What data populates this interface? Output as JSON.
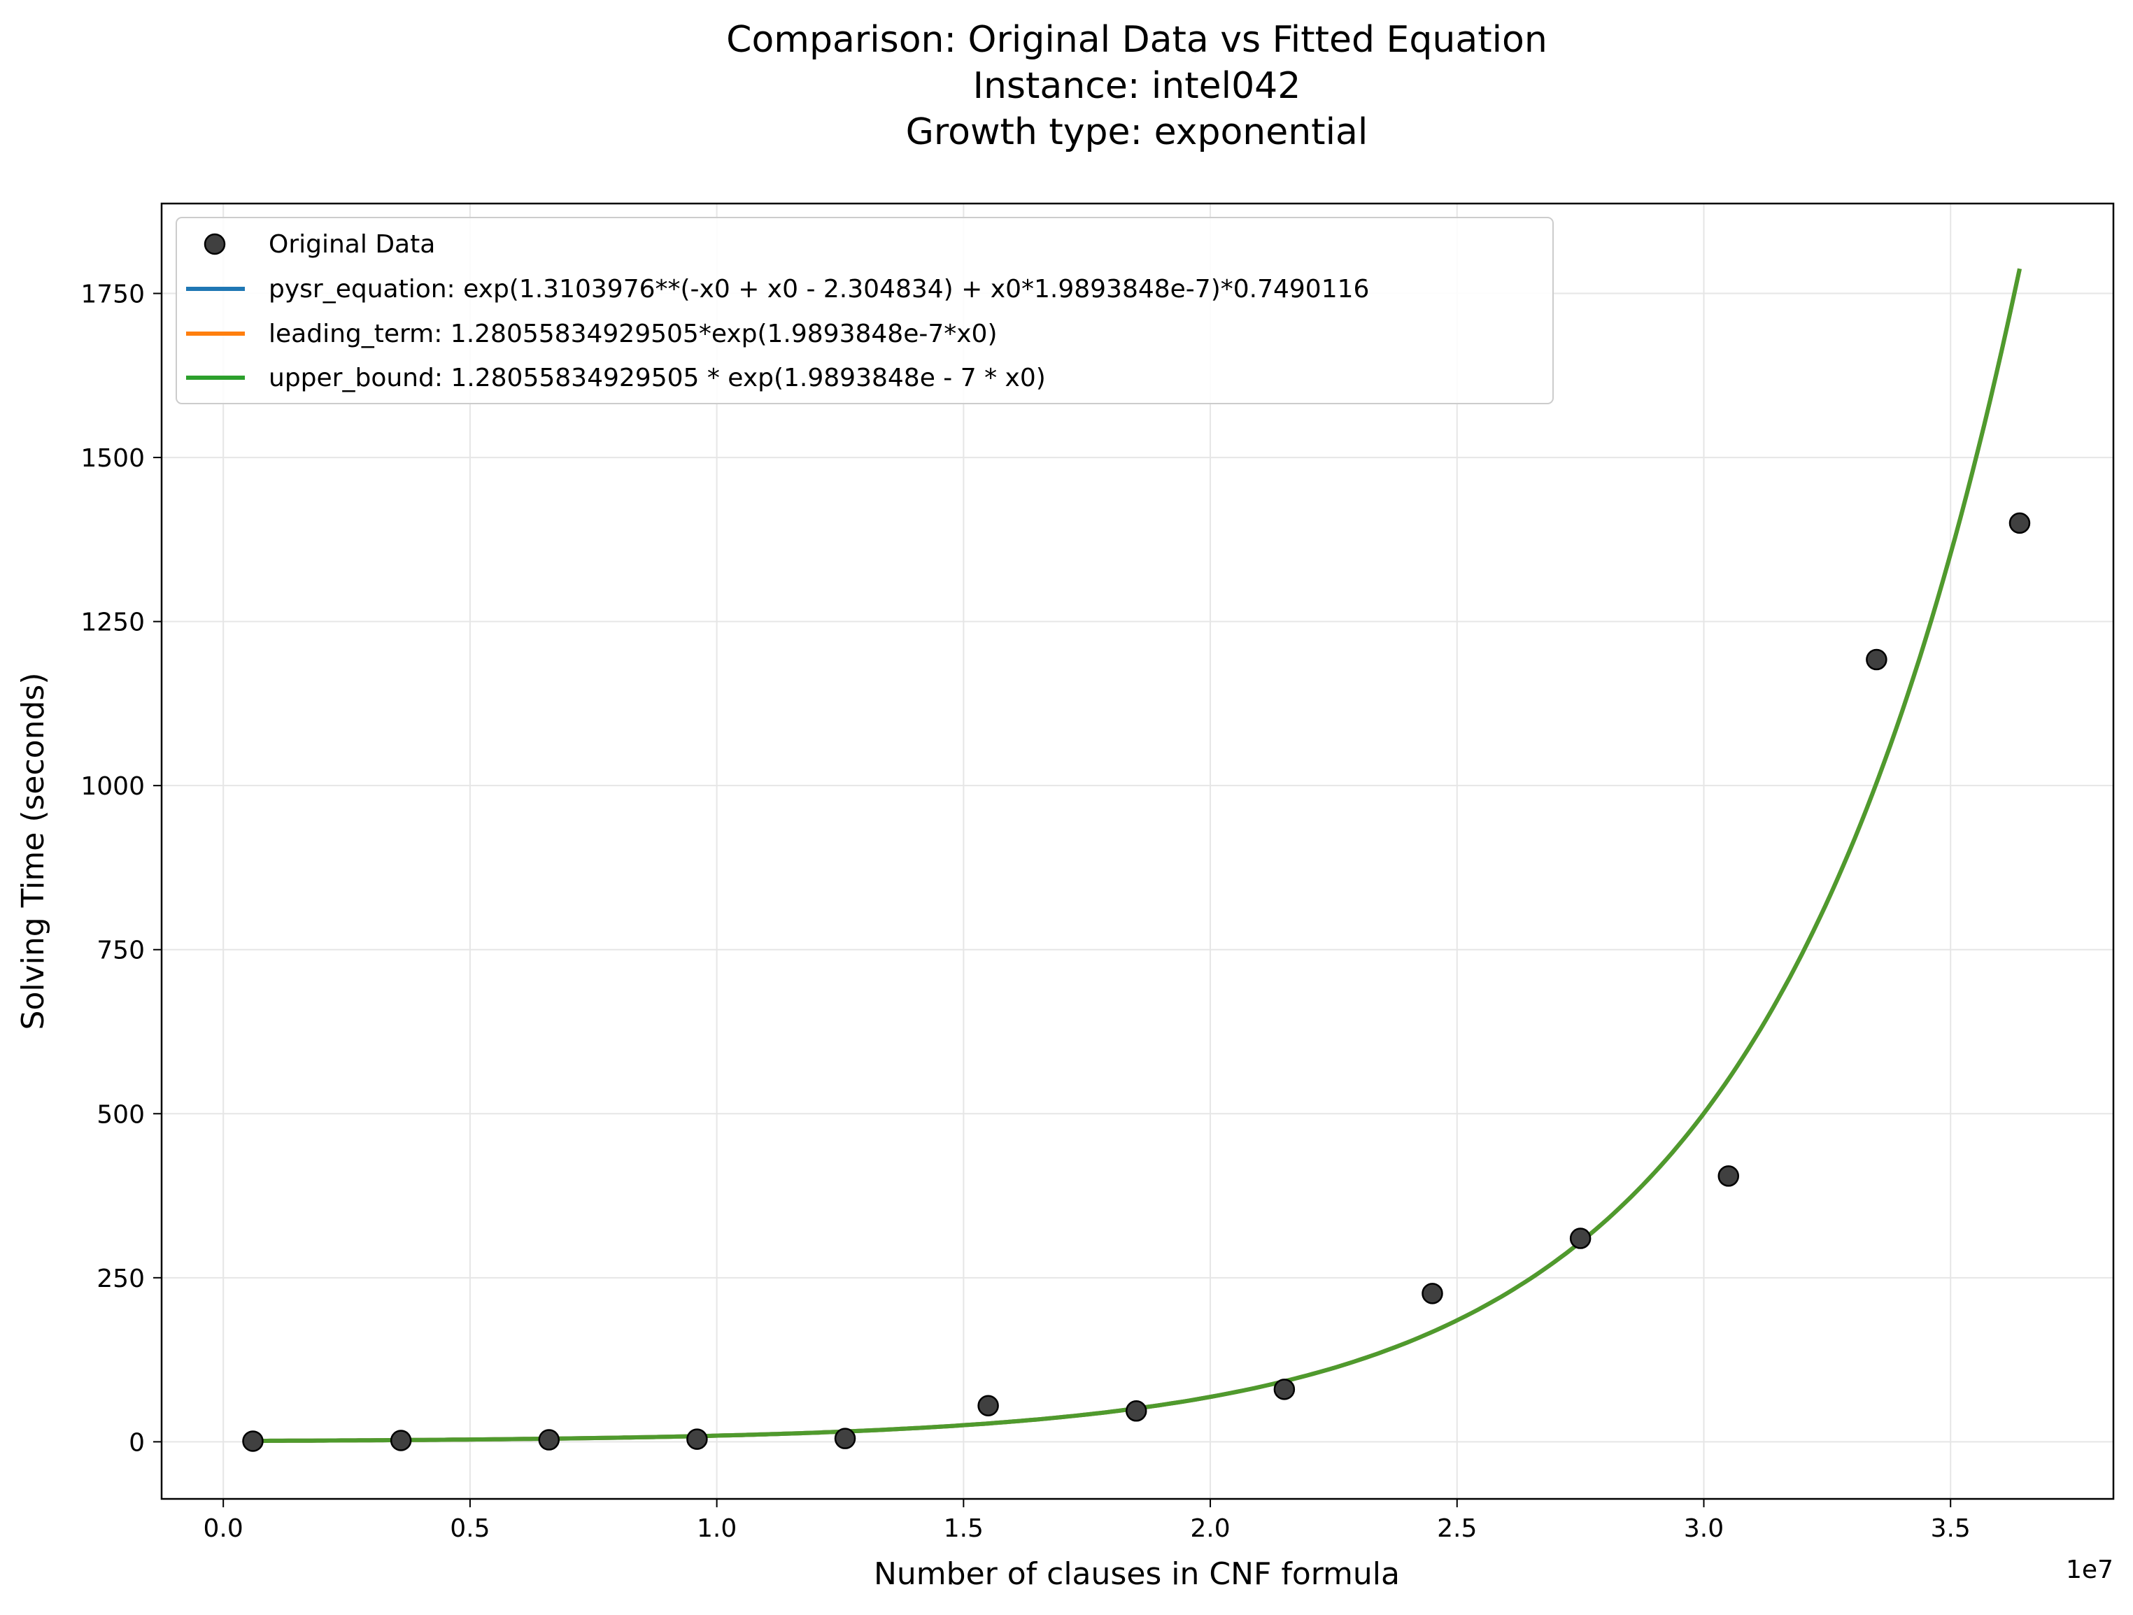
{
  "chart_data": {
    "type": "scatter",
    "title_lines": [
      "Comparison: Original Data vs Fitted Equation",
      "Instance: intel042",
      "Growth type: exponential"
    ],
    "xlabel": "Number of clauses in CNF formula",
    "ylabel": "Solving Time (seconds)",
    "x_offset_label": "1e7",
    "xlim": [
      -1250000,
      38300000
    ],
    "ylim": [
      -87,
      1887
    ],
    "x_ticks": [
      0,
      5000000,
      10000000,
      15000000,
      20000000,
      25000000,
      30000000,
      35000000
    ],
    "x_tick_labels": [
      "0.0",
      "0.5",
      "1.0",
      "1.5",
      "2.0",
      "2.5",
      "3.0",
      "3.5"
    ],
    "y_ticks": [
      0,
      250,
      500,
      750,
      1000,
      1250,
      1500,
      1750
    ],
    "y_tick_labels": [
      "0",
      "250",
      "500",
      "750",
      "1000",
      "1250",
      "1500",
      "1750"
    ],
    "grid": true,
    "legend_position": "upper-left",
    "scatter": {
      "name": "Original Data",
      "color": "#404040",
      "points": [
        {
          "x": 600000,
          "y": 1
        },
        {
          "x": 3600000,
          "y": 2
        },
        {
          "x": 6600000,
          "y": 3
        },
        {
          "x": 9600000,
          "y": 4
        },
        {
          "x": 12600000,
          "y": 5
        },
        {
          "x": 15500000,
          "y": 55
        },
        {
          "x": 18500000,
          "y": 47
        },
        {
          "x": 21500000,
          "y": 80
        },
        {
          "x": 24500000,
          "y": 226
        },
        {
          "x": 27500000,
          "y": 310
        },
        {
          "x": 30500000,
          "y": 405
        },
        {
          "x": 33500000,
          "y": 1192
        },
        {
          "x": 36400000,
          "y": 1400
        }
      ]
    },
    "fitted_curves": [
      {
        "name": "pysr_equation: exp(1.3103976**(-x0 + x0 - 2.304834) + x0*1.9893848e-7)*0.7490116",
        "color": "#1f77b4",
        "coefficient": 1.28055834929505,
        "rate": 1.9893848e-07
      },
      {
        "name": "leading_term: 1.28055834929505*exp(1.9893848e-7*x0)",
        "color": "#ff7f0e",
        "coefficient": 1.28055834929505,
        "rate": 1.9893848e-07
      },
      {
        "name": "upper_bound: 1.28055834929505 * exp(1.9893848e - 7 * x0)",
        "color": "#2ca02c",
        "coefficient": 1.28055834929505,
        "rate": 1.9893848e-07
      }
    ],
    "curve_x_range": [
      600000,
      36400000
    ]
  }
}
